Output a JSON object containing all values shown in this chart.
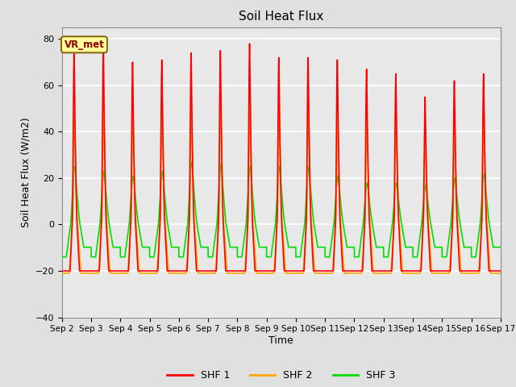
{
  "title": "Soil Heat Flux",
  "xlabel": "Time",
  "ylabel": "Soil Heat Flux (W/m2)",
  "ylim": [
    -40,
    85
  ],
  "yticks": [
    -40,
    -20,
    0,
    20,
    40,
    60,
    80
  ],
  "plot_bg": "#e8e8e8",
  "fig_bg": "#e0e0e0",
  "grid_color": "white",
  "colors": {
    "SHF 1": "#ff0000",
    "SHF 2": "#ffa500",
    "SHF 3": "#00dd00"
  },
  "legend_label": "VR_met",
  "n_days": 15,
  "start_day": 2,
  "points_per_day": 288,
  "daily_peaks_shf1": [
    75,
    77,
    70,
    71,
    74,
    75,
    78,
    72,
    72,
    71,
    67,
    65,
    55,
    62,
    65
  ],
  "daily_peaks_shf2": [
    50,
    52,
    47,
    50,
    52,
    56,
    57,
    52,
    52,
    50,
    45,
    45,
    40,
    46,
    50
  ],
  "daily_peaks_shf3": [
    25,
    23,
    21,
    23,
    27,
    26,
    25,
    25,
    25,
    21,
    18,
    18,
    17,
    20,
    22
  ],
  "night_min_shf1": -20,
  "night_min_shf2": -21,
  "night_min_shf3": -14
}
